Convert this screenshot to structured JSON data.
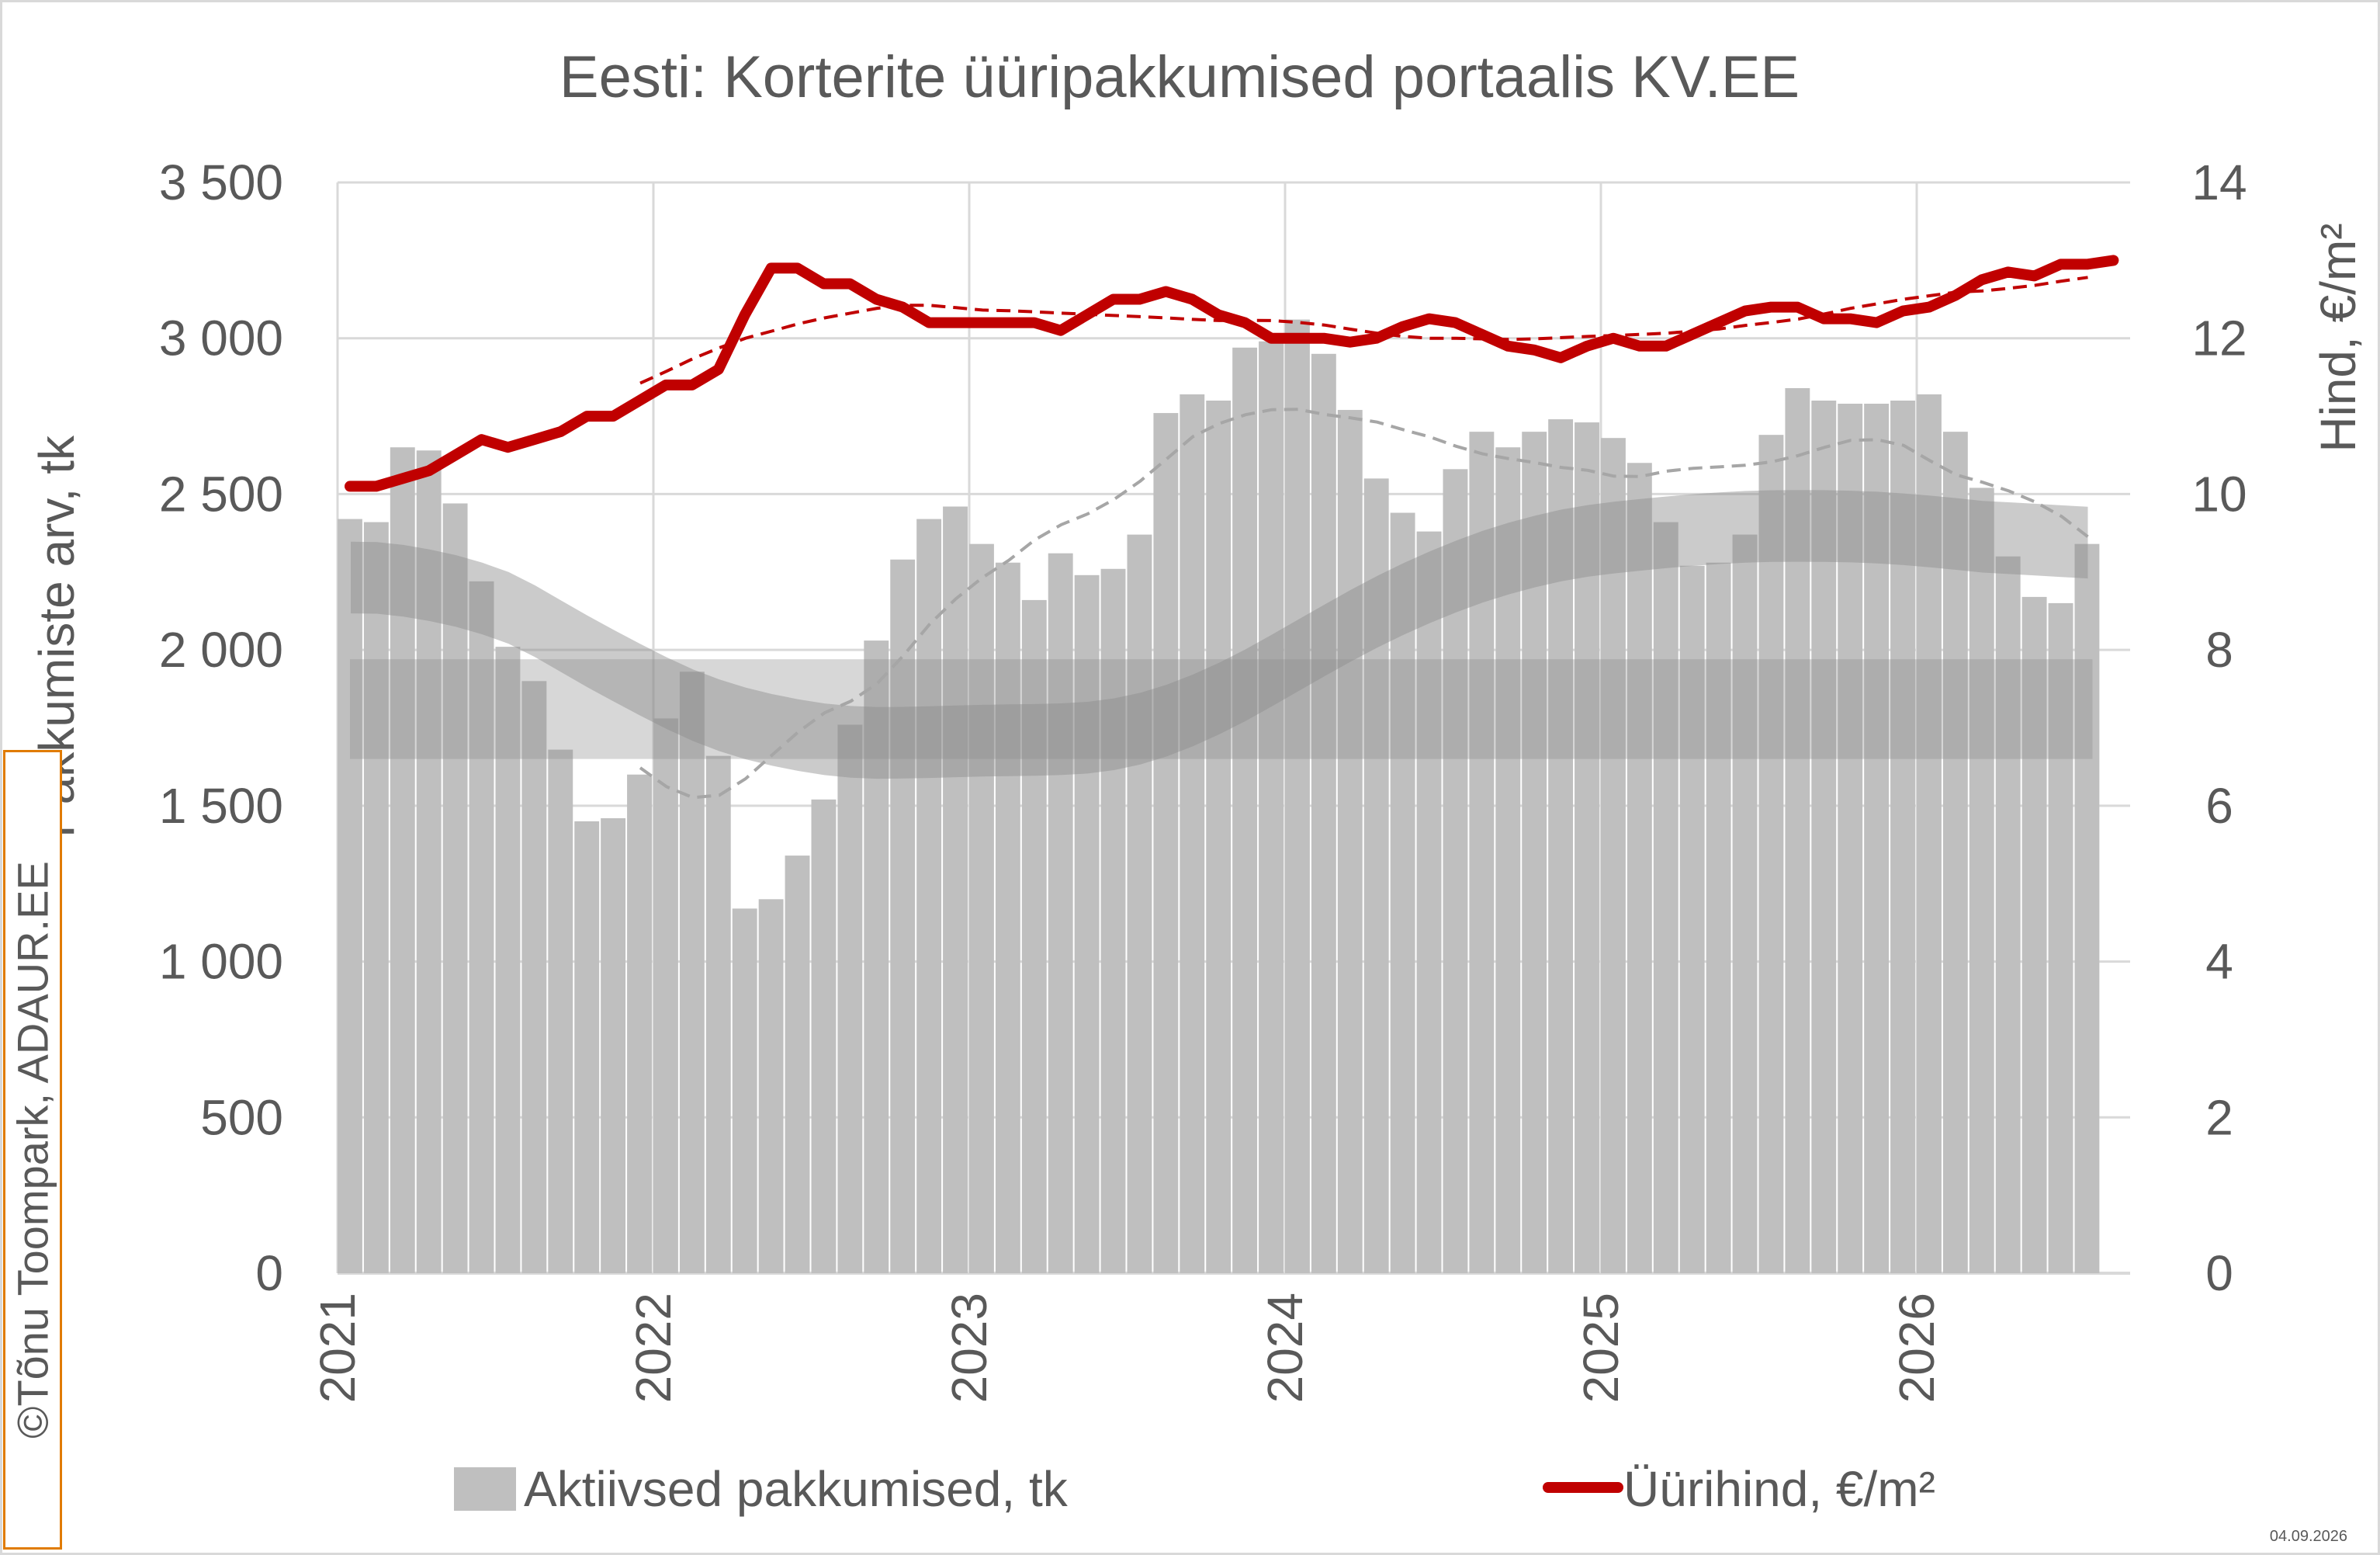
{
  "chart_data": {
    "type": "bar",
    "title": "Eesti: Korterite üüripakkumised portaalis KV.EE",
    "ylabel": "Pakkumiste arv, tk",
    "y2label": "Hind, €/m²",
    "ylim": [
      0,
      3500
    ],
    "y2lim": [
      0,
      14
    ],
    "y_ticks": [
      "0",
      "500",
      "1 000",
      "1 500",
      "2 000",
      "2 500",
      "3 000",
      "3 500"
    ],
    "y2_ticks": [
      "0",
      "2",
      "4",
      "6",
      "8",
      "10",
      "12",
      "14"
    ],
    "x_ticks": [
      "2021",
      "2022",
      "2023",
      "2024",
      "2025",
      "2026"
    ],
    "x_start": "2021-01",
    "grid": true,
    "legend_position": "bottom",
    "series": [
      {
        "name": "Aktiivsed pakkumised, tk",
        "type": "bar",
        "axis": "left",
        "color": "#bfbfbf",
        "values": [
          2420,
          2410,
          2650,
          2640,
          2470,
          2220,
          2010,
          1900,
          1680,
          1450,
          1460,
          1600,
          1780,
          1930,
          1660,
          1170,
          1200,
          1340,
          1520,
          1760,
          2030,
          2290,
          2420,
          2460,
          2340,
          2280,
          2160,
          2310,
          2240,
          2260,
          2370,
          2760,
          2820,
          2800,
          2970,
          2990,
          3060,
          2950,
          2770,
          2550,
          2440,
          2380,
          2580,
          2700,
          2650,
          2700,
          2740,
          2730,
          2680,
          2600,
          2410,
          2270,
          2280,
          2370,
          2690,
          2840,
          2800,
          2790,
          2790,
          2800,
          2820,
          2700,
          2520,
          2300,
          2170,
          2150,
          2340
        ]
      },
      {
        "name": "Üürihind, €/m²",
        "type": "line",
        "axis": "right",
        "color": "#c00000",
        "values": [
          10.1,
          10.1,
          10.2,
          10.3,
          10.5,
          10.7,
          10.6,
          10.7,
          10.8,
          11.0,
          11.0,
          11.2,
          11.4,
          11.4,
          11.6,
          12.3,
          12.9,
          12.9,
          12.7,
          12.7,
          12.5,
          12.4,
          12.2,
          12.2,
          12.2,
          12.2,
          12.2,
          12.1,
          12.3,
          12.5,
          12.5,
          12.6,
          12.5,
          12.3,
          12.2,
          12.0,
          12.0,
          12.0,
          11.95,
          12.0,
          12.15,
          12.25,
          12.2,
          12.05,
          11.9,
          11.85,
          11.75,
          11.9,
          12.0,
          11.9,
          11.9,
          12.05,
          12.2,
          12.35,
          12.4,
          12.4,
          12.25,
          12.25,
          12.2,
          12.35,
          12.4,
          12.55,
          12.75,
          12.85,
          12.8,
          12.95,
          12.95,
          13.0
        ]
      }
    ],
    "colors": {
      "grid": "#d9d9d9",
      "text": "#595959",
      "band": "#8c8c8c",
      "trend_red": "#c00000",
      "trend_gray": "#a6a6a6",
      "copyright_border": "#e07b00"
    }
  },
  "copyright": "©Tõnu Toompark, ADAUR.EE",
  "date": "04.09.2026"
}
